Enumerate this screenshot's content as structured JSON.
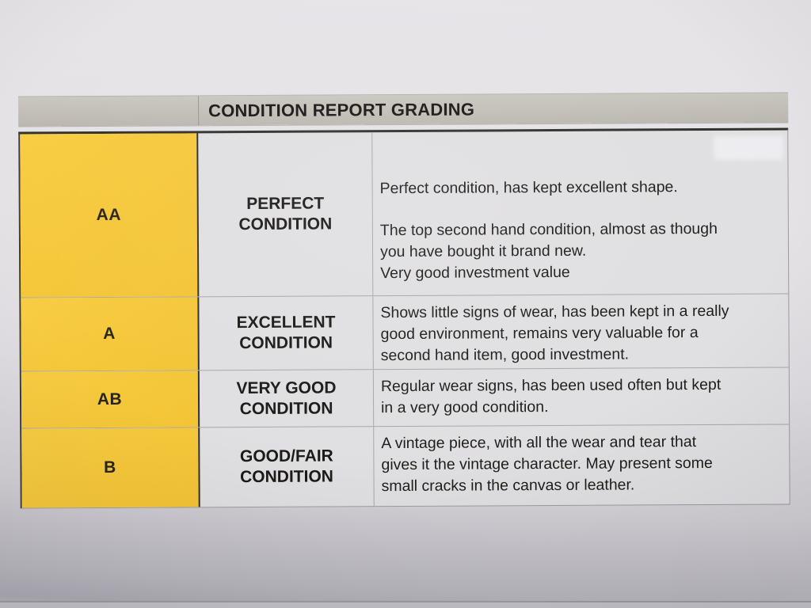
{
  "table": {
    "title": "CONDITION REPORT GRADING",
    "rows": [
      {
        "grade": "AA",
        "condition": "PERFECT\nCONDITION",
        "description": [
          "Perfect condition, has kept excellent shape.",
          "The top second hand condition, almost as though\nyou have bought it brand new.",
          "Very good investment value"
        ]
      },
      {
        "grade": "A",
        "condition": "EXCELLENT\nCONDITION",
        "description": [
          "Shows little signs of wear, has been kept in a really\ngood environment, remains very valuable for a\nsecond hand item, good investment."
        ]
      },
      {
        "grade": "AB",
        "condition": "VERY GOOD\nCONDITION",
        "description": [
          "Regular wear signs, has been used often but kept\nin a very good condition."
        ]
      },
      {
        "grade": "B",
        "condition": "GOOD/FAIR\nCONDITION",
        "description": [
          "A vintage piece, with all the wear and tear that\ngives it the vintage character. May present some\nsmall cracks in the canvas or leather."
        ]
      }
    ],
    "colors": {
      "grade_column": "#f5c636",
      "header_bar": "#c1bdb6",
      "paper": "#e3e1e4",
      "text": "#1b1917"
    }
  }
}
